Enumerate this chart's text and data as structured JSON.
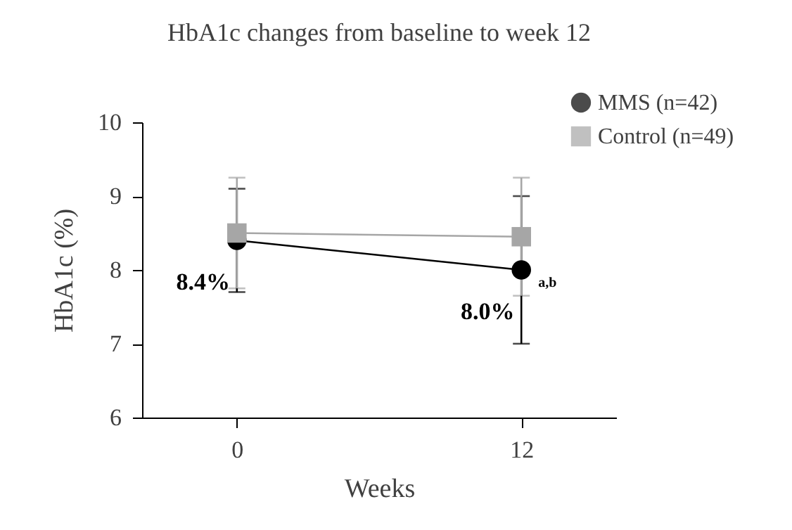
{
  "chart_data": {
    "type": "line",
    "title": "HbA1c changes from baseline to week 12",
    "xlabel": "Weeks",
    "ylabel": "HbA1c (%)",
    "x": [
      0,
      12
    ],
    "xlim": [
      -4,
      16
    ],
    "xticks": [
      0,
      12
    ],
    "ylim": [
      6,
      10
    ],
    "yticks": [
      6,
      7,
      8,
      9,
      10
    ],
    "series": [
      {
        "name": "MMS (n=42)",
        "color": "#000000",
        "marker": "circle",
        "values": [
          8.4,
          8.0
        ],
        "errors": [
          0.7,
          1.0
        ],
        "value_labels": [
          "8.4%",
          "8.0%"
        ]
      },
      {
        "name": "Control (n=49)",
        "color": "#a6a6a6",
        "marker": "square",
        "values": [
          8.5,
          8.45
        ],
        "errors": [
          0.75,
          0.8
        ]
      }
    ],
    "annotations": [
      {
        "text": "a,b",
        "x": 12,
        "y": 8.0
      }
    ],
    "grid": false,
    "legend": "top right"
  }
}
